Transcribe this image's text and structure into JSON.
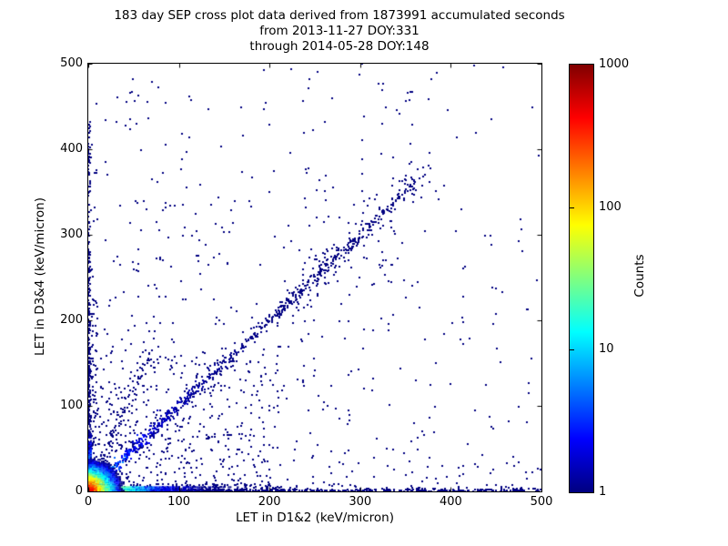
{
  "chart_data": {
    "type": "scatter",
    "title_lines": [
      "183 day SEP cross plot data derived from 1873991 accumulated seconds",
      "from 2013-11-27 DOY:331",
      "through 2014-05-28 DOY:148"
    ],
    "xlabel": "LET in D1&2 (keV/micron)",
    "ylabel": "LET in D3&4 (keV/micron)",
    "xlim": [
      0,
      500
    ],
    "ylim": [
      0,
      500
    ],
    "xticks": [
      0,
      100,
      200,
      300,
      400,
      500
    ],
    "yticks": [
      0,
      100,
      200,
      300,
      400,
      500
    ],
    "grid": false,
    "background": "#ffffff",
    "frame_color": "#000000",
    "point_color_min": "#000080",
    "colorbar": {
      "label": "Counts",
      "scale": "log",
      "min": 1,
      "max": 1000,
      "ticks": [
        1,
        10,
        100,
        1000
      ],
      "colormap": "jet",
      "colormap_stops": [
        [
          0.0,
          [
            0,
            0,
            128
          ]
        ],
        [
          0.125,
          [
            0,
            0,
            255
          ]
        ],
        [
          0.375,
          [
            0,
            255,
            255
          ]
        ],
        [
          0.625,
          [
            255,
            255,
            0
          ]
        ],
        [
          0.875,
          [
            255,
            0,
            0
          ]
        ],
        [
          1.0,
          [
            128,
            0,
            0
          ]
        ]
      ]
    },
    "seed": 12345,
    "features": [
      {
        "name": "sparse-field",
        "type": "prob_field",
        "attempts": 2200,
        "decay_sum": 340,
        "xmax": 500,
        "ymax": 500
      },
      {
        "name": "lower-left-field",
        "type": "rect",
        "n": 430,
        "x0": 0,
        "x1": 210,
        "y0": 0,
        "y1": 160,
        "px": 1.25,
        "py": 1.25
      },
      {
        "name": "left-near-scatter",
        "type": "rect",
        "n": 90,
        "x0": 0,
        "x1": 9,
        "y0": 0,
        "y1": 260,
        "px": 1,
        "py": 1.8
      },
      {
        "name": "bottom-near-scatter",
        "type": "rect",
        "n": 170,
        "x0": 0,
        "x1": 310,
        "y0": 0,
        "y1": 9,
        "px": 1.5,
        "py": 1
      },
      {
        "name": "bottom-right-scatter",
        "type": "rect",
        "n": 25,
        "x0": 300,
        "x1": 500,
        "y0": 0,
        "y1": 35,
        "px": 1,
        "py": 1.6
      },
      {
        "name": "upper-column",
        "type": "rect",
        "n": 38,
        "x0": 300,
        "x1": 365,
        "y0": 240,
        "y1": 480,
        "px": 1,
        "py": 1
      },
      {
        "name": "left-edge-strip",
        "type": "edge",
        "axis": "y",
        "n": 380,
        "sigma": 1.3,
        "len": 430,
        "pow": 2.2
      },
      {
        "name": "bottom-edge-strip",
        "type": "edge",
        "axis": "x",
        "n": 520,
        "sigma": 1.5,
        "len": 500,
        "pow": 1.35
      },
      {
        "name": "main-diagonal-band",
        "type": "band",
        "n": 700,
        "min": 10,
        "max": 360,
        "pow": 1.6,
        "slope": 1,
        "sigma": 4.5,
        "boost": 8,
        "boost_decay": 40
      },
      {
        "name": "diagonal-tail",
        "type": "band",
        "n": 55,
        "min": 255,
        "max": 380,
        "pow": 1,
        "slope": 1,
        "sigma": 13,
        "boost": 0,
        "boost_decay": 1
      },
      {
        "name": "diagonal-cluster",
        "type": "cluster",
        "n": 90,
        "cx": 247,
        "cy": 247,
        "sigma_along": 25,
        "sigma_perp": 12
      },
      {
        "name": "steep-band",
        "type": "band2",
        "n": 120,
        "slope": 2.35,
        "len": 75,
        "pow": 1.3,
        "sx": 2.5,
        "sy": 6
      },
      {
        "name": "bottom-axis-arm",
        "type": "arm",
        "axis": "x",
        "peak": 250,
        "decay": 15,
        "len": 210,
        "width": 5,
        "floor": 2.5,
        "floor_decay": 120
      },
      {
        "name": "left-axis-arm",
        "type": "arm",
        "axis": "y",
        "peak": 150,
        "decay": 10,
        "len": 160,
        "width": 4,
        "floor": 2,
        "floor_decay": 60
      },
      {
        "name": "diagonal-streak",
        "type": "diag_streak",
        "from": 8,
        "to": 50,
        "peak": 22,
        "decay": 18,
        "width": 3,
        "blob_at": 20,
        "blob_peak": 15
      },
      {
        "name": "origin-hotspot",
        "type": "blob",
        "peak": 1000,
        "decay": 5.5,
        "extent": 56,
        "bin": 2
      }
    ]
  }
}
